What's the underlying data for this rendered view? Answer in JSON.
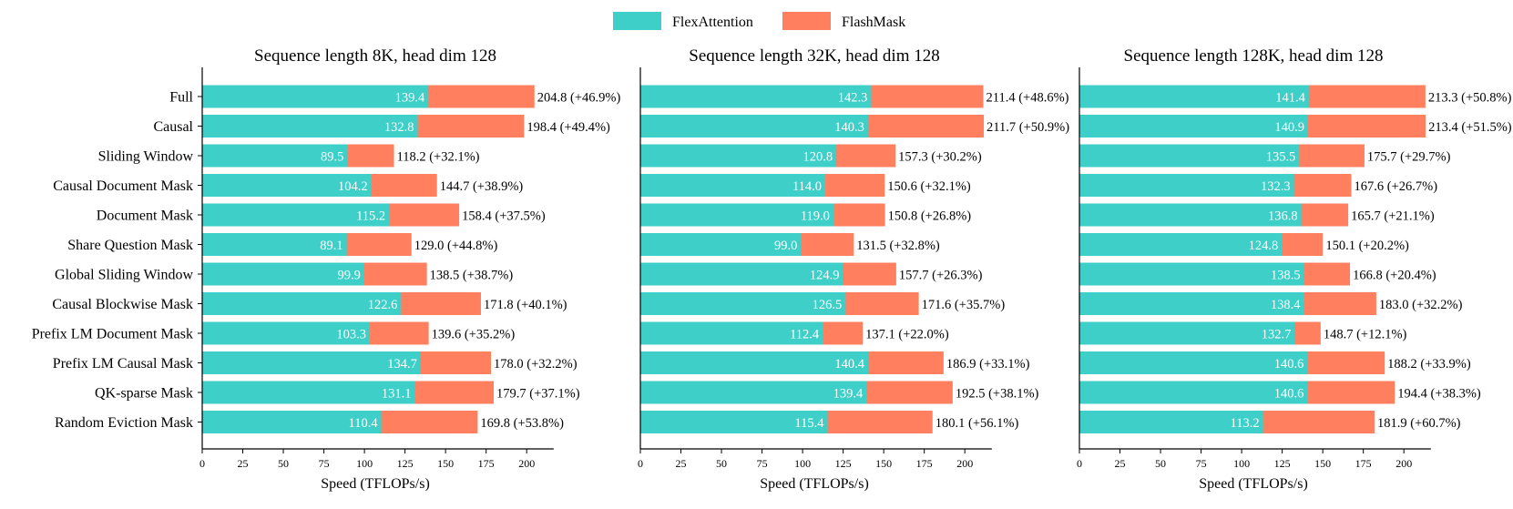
{
  "legend": {
    "items": [
      {
        "label": "FlexAttention",
        "color": "#3ecfc8"
      },
      {
        "label": "FlashMask",
        "color": "#ff7f5e"
      }
    ],
    "placement": "top-center"
  },
  "colors": {
    "flex": "#3ecfc8",
    "flash": "#ff7f5e",
    "axis": "#000000",
    "flex_label": "#ffffff"
  },
  "chart_data": [
    {
      "type": "bar",
      "orientation": "horizontal",
      "stacked": "overlay",
      "title": "Sequence length 8K, head dim 128",
      "xlabel": "Speed (TFLOPs/s)",
      "xlim": [
        0,
        220
      ],
      "xticks": [
        0,
        25,
        50,
        75,
        100,
        125,
        150,
        175,
        200
      ],
      "categories": [
        "Full",
        "Causal",
        "Sliding Window",
        "Causal Document Mask",
        "Document Mask",
        "Share Question Mask",
        "Global Sliding Window",
        "Causal Blockwise Mask",
        "Prefix LM Document Mask",
        "Prefix LM Causal Mask",
        "QK-sparse Mask",
        "Random Eviction Mask"
      ],
      "series": [
        {
          "name": "FlexAttention",
          "values": [
            139.4,
            132.8,
            89.5,
            104.2,
            115.2,
            89.1,
            99.9,
            122.6,
            103.3,
            134.7,
            131.1,
            110.4
          ]
        },
        {
          "name": "FlashMask",
          "values": [
            204.8,
            198.4,
            118.2,
            144.7,
            158.4,
            129.0,
            138.5,
            171.8,
            139.6,
            178.0,
            179.7,
            169.8
          ]
        }
      ],
      "flex_labels": [
        "139.4",
        "132.8",
        "89.5",
        "104.2",
        "115.2",
        "89.1",
        "99.9",
        "122.6",
        "103.3",
        "134.7",
        "131.1",
        "110.4"
      ],
      "flash_labels": [
        "204.8 (+46.9%)",
        "198.4 (+49.4%)",
        "118.2 (+32.1%)",
        "144.7 (+38.9%)",
        "158.4 (+37.5%)",
        "129.0 (+44.8%)",
        "138.5 (+38.7%)",
        "171.8 (+40.1%)",
        "139.6 (+35.2%)",
        "178.0 (+32.2%)",
        "179.7 (+37.1%)",
        "169.8 (+53.8%)"
      ]
    },
    {
      "type": "bar",
      "orientation": "horizontal",
      "stacked": "overlay",
      "title": "Sequence length 32K, head dim 128",
      "xlabel": "Speed (TFLOPs/s)",
      "xlim": [
        0,
        220
      ],
      "xticks": [
        0,
        25,
        50,
        75,
        100,
        125,
        150,
        175,
        200
      ],
      "categories": [
        "Full",
        "Causal",
        "Sliding Window",
        "Causal Document Mask",
        "Document Mask",
        "Share Question Mask",
        "Global Sliding Window",
        "Causal Blockwise Mask",
        "Prefix LM Document Mask",
        "Prefix LM Causal Mask",
        "QK-sparse Mask",
        "Random Eviction Mask"
      ],
      "series": [
        {
          "name": "FlexAttention",
          "values": [
            142.3,
            140.3,
            120.8,
            114.0,
            119.0,
            99.0,
            124.9,
            126.5,
            112.4,
            140.4,
            139.4,
            115.4
          ]
        },
        {
          "name": "FlashMask",
          "values": [
            211.4,
            211.7,
            157.3,
            150.6,
            150.8,
            131.5,
            157.7,
            171.6,
            137.1,
            186.9,
            192.5,
            180.1
          ]
        }
      ],
      "flex_labels": [
        "142.3",
        "140.3",
        "120.8",
        "114.0",
        "119.0",
        "99.0",
        "124.9",
        "126.5",
        "112.4",
        "140.4",
        "139.4",
        "115.4"
      ],
      "flash_labels": [
        "211.4 (+48.6%)",
        "211.7 (+50.9%)",
        "157.3 (+30.2%)",
        "150.6 (+32.1%)",
        "150.8 (+26.8%)",
        "131.5 (+32.8%)",
        "157.7 (+26.3%)",
        "171.6 (+35.7%)",
        "137.1 (+22.0%)",
        "186.9 (+33.1%)",
        "192.5 (+38.1%)",
        "180.1 (+56.1%)"
      ]
    },
    {
      "type": "bar",
      "orientation": "horizontal",
      "stacked": "overlay",
      "title": "Sequence length 128K, head dim 128",
      "xlabel": "Speed (TFLOPs/s)",
      "xlim": [
        0,
        220
      ],
      "xticks": [
        0,
        25,
        50,
        75,
        100,
        125,
        150,
        175,
        200
      ],
      "categories": [
        "Full",
        "Causal",
        "Sliding Window",
        "Causal Document Mask",
        "Document Mask",
        "Share Question Mask",
        "Global Sliding Window",
        "Causal Blockwise Mask",
        "Prefix LM Document Mask",
        "Prefix LM Causal Mask",
        "QK-sparse Mask",
        "Random Eviction Mask"
      ],
      "series": [
        {
          "name": "FlexAttention",
          "values": [
            141.4,
            140.9,
            135.5,
            132.3,
            136.8,
            124.8,
            138.5,
            138.4,
            132.7,
            140.6,
            140.6,
            113.2
          ]
        },
        {
          "name": "FlashMask",
          "values": [
            213.3,
            213.4,
            175.7,
            167.6,
            165.7,
            150.1,
            166.8,
            183.0,
            148.7,
            188.2,
            194.4,
            181.9
          ]
        }
      ],
      "flex_labels": [
        "141.4",
        "140.9",
        "135.5",
        "132.3",
        "136.8",
        "124.8",
        "138.5",
        "138.4",
        "132.7",
        "140.6",
        "140.6",
        "113.2"
      ],
      "flash_labels": [
        "213.3 (+50.8%)",
        "213.4 (+51.5%)",
        "175.7 (+29.7%)",
        "167.6 (+26.7%)",
        "165.7 (+21.1%)",
        "150.1 (+20.2%)",
        "166.8 (+20.4%)",
        "183.0 (+32.2%)",
        "148.7 (+12.1%)",
        "188.2 (+33.9%)",
        "194.4 (+38.3%)",
        "181.9 (+60.7%)"
      ]
    }
  ]
}
